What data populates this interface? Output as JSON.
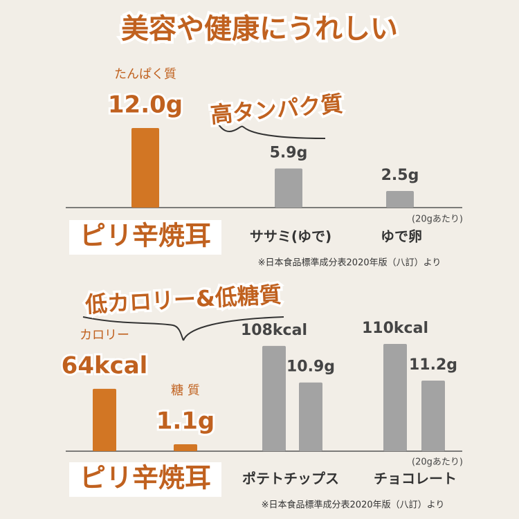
{
  "header": {
    "title": "美容や健康にうれしい"
  },
  "chart_data": [
    {
      "type": "bar",
      "annotation": "高タンパク質",
      "categories": [
        "ピリ辛焼耳",
        "ササミ(ゆで)",
        "ゆで卵"
      ],
      "colors": [
        "#d27624",
        "#a3a3a3",
        "#a3a3a3"
      ],
      "series": [
        {
          "name": "たんぱく質",
          "values": [
            12.0,
            5.9,
            2.5
          ],
          "value_labels": [
            "12.0g",
            "5.9g",
            "2.5g"
          ]
        }
      ],
      "note": "(20gあたり)",
      "source": "※日本食品標準成分表2020年版（八訂）より"
    },
    {
      "type": "bar",
      "annotation": "低カロリー&低糖質",
      "categories": [
        "ピリ辛焼耳",
        "ポテトチップス",
        "チョコレート"
      ],
      "colors": [
        "#d27624",
        "#a3a3a3",
        "#a3a3a3"
      ],
      "series": [
        {
          "name": "カロリー",
          "values": [
            64,
            108,
            110
          ],
          "value_labels": [
            "64kcal",
            "108kcal",
            "110kcal"
          ]
        },
        {
          "name": "糖 質",
          "values": [
            1.1,
            10.9,
            11.2
          ],
          "value_labels": [
            "1.1g",
            "10.9g",
            "11.2g"
          ]
        }
      ],
      "note": "(20gあたり)",
      "source": "※日本食品標準成分表2020年版（八訂）より"
    }
  ]
}
